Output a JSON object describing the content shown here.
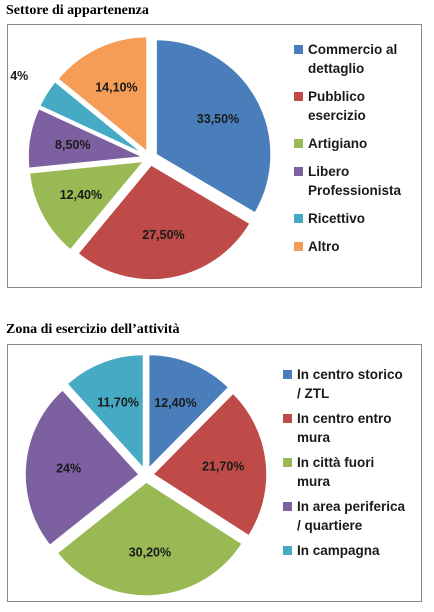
{
  "chart_data": [
    {
      "type": "pie",
      "title": "Settore di appartenenza",
      "colors": [
        "#4A7EBB",
        "#BE4B48",
        "#98B954",
        "#7D60A0",
        "#46AAC5",
        "#F59D56"
      ],
      "slices": [
        {
          "name": "Commercio al dettaglio",
          "value": 33.5,
          "label": "33,50%"
        },
        {
          "name": "Pubblico esercizio",
          "value": 27.5,
          "label": "27,50%"
        },
        {
          "name": "Artigiano",
          "value": 12.4,
          "label": "12,40%"
        },
        {
          "name": "Libero Professionista",
          "value": 8.5,
          "label": "8,50%"
        },
        {
          "name": "Ricettivo",
          "value": 4,
          "label": "4%"
        },
        {
          "name": "Altro",
          "value": 14.1,
          "label": "14,10%"
        }
      ],
      "legend": [
        {
          "text": "Commercio al\ndettaglio"
        },
        {
          "text": "Pubblico\nesercizio"
        },
        {
          "text": "Artigiano"
        },
        {
          "text": "Libero\nProfessionista"
        },
        {
          "text": "Ricettivo"
        },
        {
          "text": "Altro"
        }
      ],
      "legend_position": "right",
      "exploded": true
    },
    {
      "type": "pie",
      "title": "Zona di esercizio dell’attività",
      "colors": [
        "#4A7EBB",
        "#BE4B48",
        "#98B954",
        "#7D60A0",
        "#46AAC5"
      ],
      "slices": [
        {
          "name": "In centro storico / ZTL",
          "value": 12.4,
          "label": "12,40%"
        },
        {
          "name": "In centro entro mura",
          "value": 21.7,
          "label": "21,70%"
        },
        {
          "name": "In città fuori mura",
          "value": 30.2,
          "label": "30,20%"
        },
        {
          "name": "In area periferica / quartiere",
          "value": 24,
          "label": "24%"
        },
        {
          "name": "In campagna",
          "value": 11.7,
          "label": "11,70%"
        }
      ],
      "legend": [
        {
          "text": "In centro storico\n/ ZTL"
        },
        {
          "text": "In centro entro\nmura"
        },
        {
          "text": "In città fuori\nmura"
        },
        {
          "text": "In area periferica\n/ quartiere"
        },
        {
          "text": "In campagna"
        }
      ],
      "legend_position": "right",
      "exploded": true
    }
  ]
}
